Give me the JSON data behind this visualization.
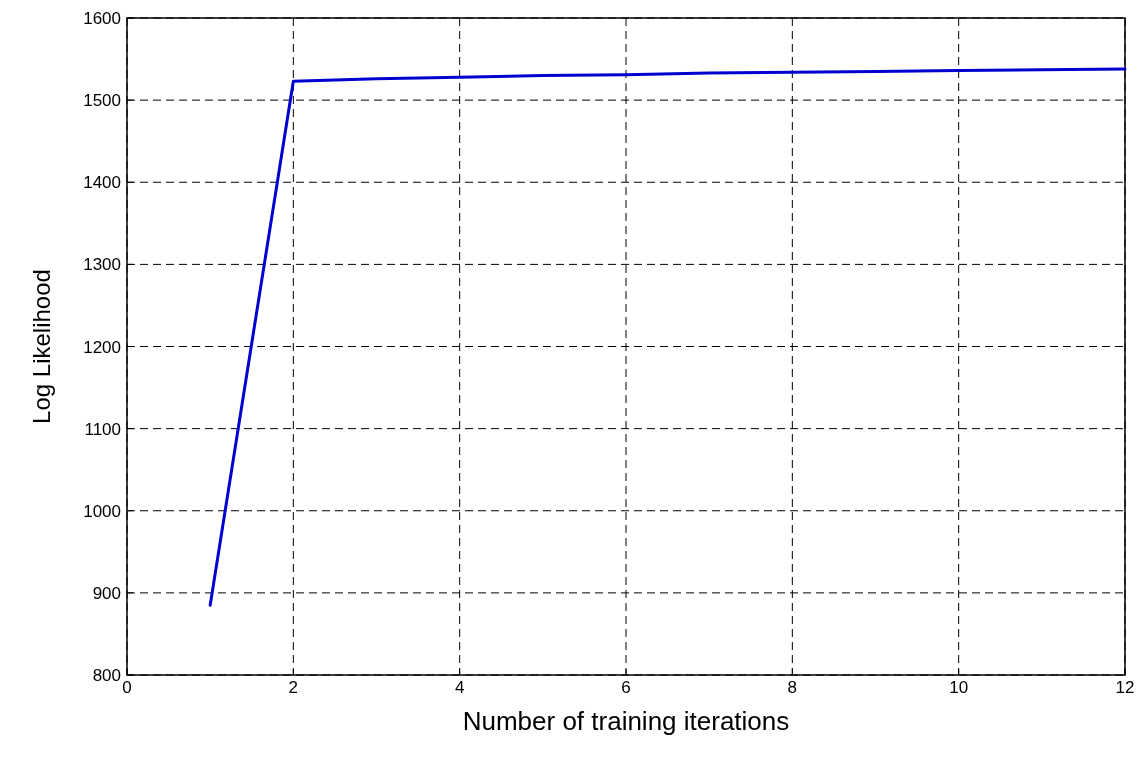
{
  "chart_data": {
    "type": "line",
    "xlabel": "Number of training iterations",
    "ylabel": "Log Likelihood",
    "x": [
      1,
      2,
      3,
      4,
      5,
      6,
      7,
      8,
      9,
      10,
      11,
      12
    ],
    "series": [
      {
        "color": "#0000d0",
        "values": [
          885,
          1523,
          1526,
          1528,
          1530,
          1531,
          1533,
          1534,
          1535,
          1536,
          1537,
          1538
        ]
      }
    ],
    "xlim": [
      0,
      12
    ],
    "xticks": [
      0,
      2,
      4,
      6,
      8,
      10,
      12
    ],
    "ylim": [
      800,
      1600
    ],
    "yticks": [
      800,
      900,
      1000,
      1100,
      1200,
      1300,
      1400,
      1500,
      1600
    ],
    "grid": true,
    "line_style": "solid",
    "marker": "none"
  }
}
